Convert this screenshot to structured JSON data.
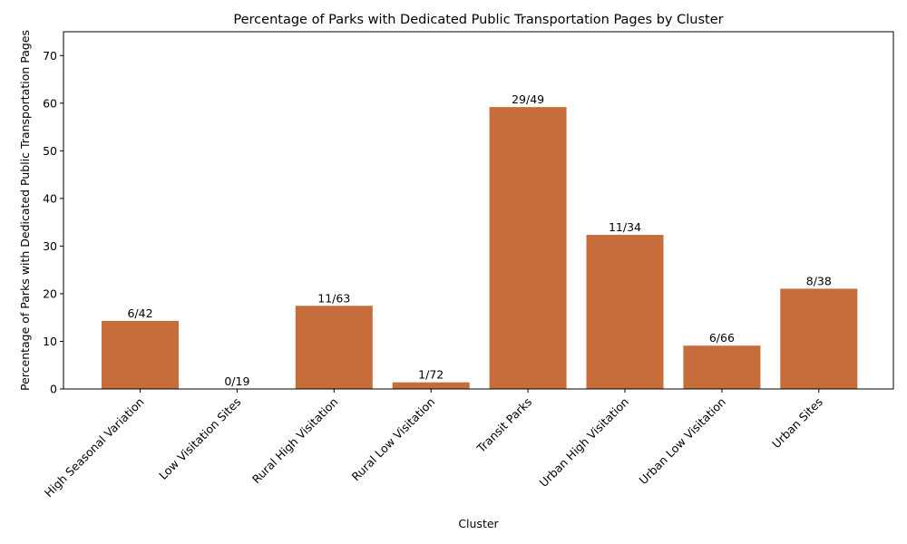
{
  "chart_data": {
    "type": "bar",
    "title": "Percentage of Parks with Dedicated Public Transportation Pages by Cluster",
    "xlabel": "Cluster",
    "ylabel": "Percentage of Parks with Dedicated Public Transportation Pages",
    "ylim": [
      0,
      75
    ],
    "yticks": [
      0,
      10,
      20,
      30,
      40,
      50,
      60,
      70
    ],
    "bar_color": "#c76d3b",
    "grid": false,
    "categories": [
      "High Seasonal Variation",
      "Low Visitation Sites",
      "Rural High Visitation",
      "Rural Low Visitation",
      "Transit Parks",
      "Urban High Visitation",
      "Urban Low Visitation",
      "Urban Sites"
    ],
    "values": [
      14.29,
      0.0,
      17.46,
      1.39,
      59.18,
      32.35,
      9.09,
      21.05
    ],
    "data_labels": [
      "6/42",
      "0/19",
      "11/63",
      "1/72",
      "29/49",
      "11/34",
      "6/66",
      "8/38"
    ]
  }
}
